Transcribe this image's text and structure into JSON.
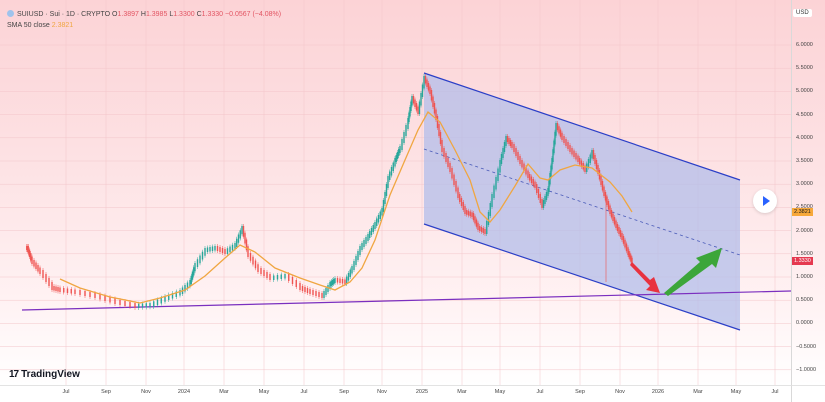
{
  "legend": {
    "symbol_line": "SUIUSD · Sui · 1D · CRYPTO",
    "open_label": "O",
    "open": "1.3897",
    "high_label": "H",
    "high": "1.3985",
    "low_label": "L",
    "low": "1.3300",
    "close_label": "C",
    "close": "1.3330",
    "change": "−0.0567 (−4.08%)",
    "indicator_label": "SMA 50 close",
    "indicator_value": "2.3821"
  },
  "price_axis": {
    "currency": "USD",
    "ticks": [
      "6.0000",
      "5.5000",
      "5.0000",
      "4.5000",
      "4.0000",
      "3.5000",
      "3.0000",
      "2.5000",
      "2.0000",
      "1.5000",
      "1.0000",
      "0.5000",
      "0.0000",
      "−0.5000",
      "−1.0000"
    ],
    "sma_badge": "2.3821",
    "last_price_badge": "1.3330"
  },
  "time_axis": {
    "labels": [
      "Jul",
      "Sep",
      "Nov",
      "2024",
      "Mar",
      "May",
      "Jul",
      "Sep",
      "Nov",
      "2025",
      "Mar",
      "May",
      "Jul",
      "Sep",
      "Nov",
      "2026",
      "Mar",
      "May",
      "Jul"
    ]
  },
  "branding": {
    "logo_text": "TradingView"
  },
  "colors": {
    "up_candle": "#26a69a",
    "down_candle": "#ef5350",
    "sma": "#f0a641",
    "channel_line": "#2b3fc7",
    "channel_fill": "#b3bde9",
    "support_line": "#7b2fbf",
    "arrow_down": "#e8323f",
    "arrow_up": "#3ca63a",
    "last_price": "#e53950"
  },
  "chart_data": {
    "type": "candlestick",
    "title": "SUIUSD · Sui · 1D · CRYPTO",
    "ylabel": "USD",
    "ylim": [
      -1.2,
      6.3
    ],
    "x": [
      "2023-05",
      "2023-07",
      "2023-09",
      "2023-11",
      "2024-01",
      "2024-03",
      "2024-05",
      "2024-07",
      "2024-09",
      "2024-11",
      "2025-01",
      "2025-03",
      "2025-05",
      "2025-07",
      "2025-09",
      "2025-11",
      "2026-01",
      "2026-03",
      "2026-05",
      "2026-07"
    ],
    "series": [
      {
        "name": "SUIUSD close (approx.)",
        "values": [
          1.55,
          0.62,
          0.48,
          0.45,
          0.95,
          1.75,
          1.05,
          0.7,
          0.95,
          3.4,
          5.0,
          2.4,
          3.8,
          3.5,
          3.3,
          1.35,
          null,
          null,
          null,
          null
        ]
      },
      {
        "name": "SMA 50 close (approx.)",
        "values": [
          null,
          0.85,
          0.55,
          0.42,
          0.72,
          1.45,
          1.45,
          0.85,
          0.85,
          2.6,
          4.3,
          3.3,
          3.1,
          3.4,
          3.4,
          2.38,
          null,
          null,
          null,
          null
        ]
      }
    ],
    "ohlc_last": {
      "open": 1.3897,
      "high": 1.3985,
      "low": 1.33,
      "close": 1.333,
      "change": -0.0567,
      "change_pct": -4.08
    },
    "annotations": [
      {
        "type": "descending_channel",
        "upper": [
          [
            "2024-12-28",
            5.4
          ],
          [
            "2026-05-15",
            3.1
          ]
        ],
        "lower": [
          [
            "2024-12-28",
            2.15
          ],
          [
            "2026-05-15",
            -0.1
          ]
        ],
        "mid_dashed": true
      },
      {
        "type": "support_trendline",
        "from": [
          "2023-05",
          0.3
        ],
        "to": [
          "2026-08",
          0.72
        ],
        "color": "purple"
      },
      {
        "type": "arrow",
        "direction": "down",
        "from": [
          "2025-11-20",
          1.3
        ],
        "to": [
          "2025-12-25",
          0.65
        ],
        "color": "red"
      },
      {
        "type": "arrow",
        "direction": "up",
        "from": [
          "2025-12-30",
          0.68
        ],
        "to": [
          "2026-03-20",
          1.65
        ],
        "color": "green"
      }
    ]
  }
}
